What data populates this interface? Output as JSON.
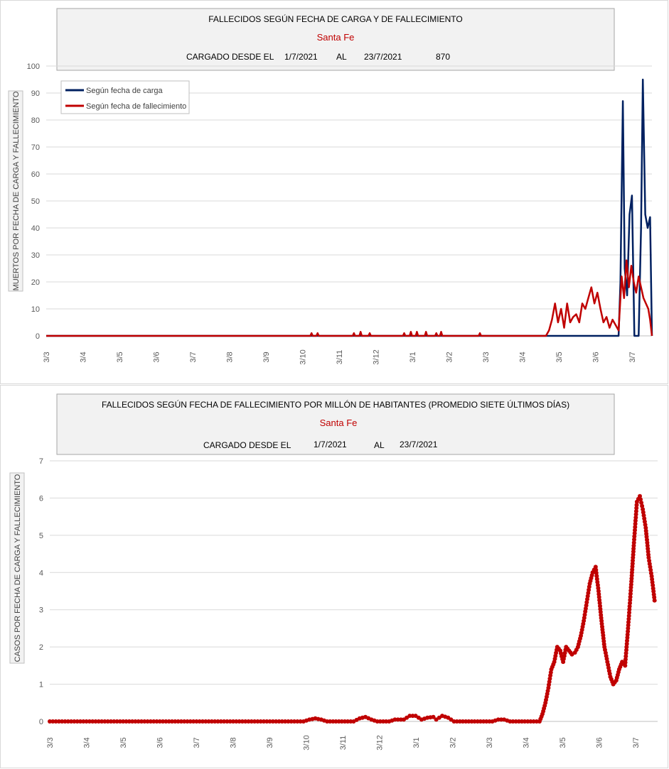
{
  "chart_data": [
    {
      "type": "line",
      "title": "FALLECIDOS SEGÚN FECHA DE CARGA Y DE FALLECIMIENTO",
      "subtitle": "Santa Fe",
      "info": {
        "label": "CARGADO DESDE EL",
        "from": "1/7/2021",
        "to_label": "AL",
        "to": "23/7/2021",
        "total": "870"
      },
      "ylabel": "MUERTOS  POR FECHA DE CARGA  Y FALLECIMIENTO",
      "ylim": [
        0,
        100
      ],
      "yticks": [
        "0",
        "10",
        "20",
        "30",
        "40",
        "50",
        "60",
        "70",
        "80",
        "90",
        "100"
      ],
      "xlim": [
        0,
        100
      ],
      "xticks": [
        "3/3",
        "3/4",
        "3/5",
        "3/6",
        "3/7",
        "3/8",
        "3/9",
        "3/10",
        "3/11",
        "3/12",
        "3/1",
        "3/2",
        "3/3",
        "3/4",
        "3/5",
        "3/6",
        "3/7"
      ],
      "legend_position": "top-left",
      "series": [
        {
          "name": "Según fecha de carga",
          "color": "#002060",
          "points": [
            [
              0,
              0
            ],
            [
              94.5,
              0
            ],
            [
              94.8,
              20
            ],
            [
              95.2,
              87
            ],
            [
              95.5,
              25
            ],
            [
              95.9,
              15
            ],
            [
              96.3,
              45
            ],
            [
              96.7,
              52
            ],
            [
              97.1,
              0
            ],
            [
              97.8,
              0
            ],
            [
              98.2,
              40
            ],
            [
              98.5,
              95
            ],
            [
              98.9,
              45
            ],
            [
              99.3,
              40
            ],
            [
              99.7,
              44
            ],
            [
              100.0,
              0
            ]
          ]
        },
        {
          "name": "Según fecha de fallecimiento",
          "color": "#c00000",
          "points": [
            [
              0,
              0
            ],
            [
              43.6,
              0
            ],
            [
              43.8,
              1
            ],
            [
              44.0,
              0
            ],
            [
              44.6,
              0
            ],
            [
              44.8,
              1
            ],
            [
              45.0,
              0
            ],
            [
              50.6,
              0
            ],
            [
              50.8,
              1
            ],
            [
              51.0,
              0
            ],
            [
              51.7,
              0
            ],
            [
              51.9,
              1.5
            ],
            [
              52.1,
              0
            ],
            [
              53.2,
              0
            ],
            [
              53.4,
              1
            ],
            [
              53.6,
              0
            ],
            [
              58.9,
              0
            ],
            [
              59.1,
              1
            ],
            [
              59.3,
              0
            ],
            [
              60.0,
              0
            ],
            [
              60.2,
              1.5
            ],
            [
              60.4,
              0
            ],
            [
              61.0,
              0
            ],
            [
              61.2,
              1.5
            ],
            [
              61.4,
              0
            ],
            [
              62.5,
              0
            ],
            [
              62.7,
              1.5
            ],
            [
              62.9,
              0
            ],
            [
              64.2,
              0
            ],
            [
              64.4,
              1
            ],
            [
              64.6,
              0
            ],
            [
              65.0,
              0
            ],
            [
              65.2,
              1.5
            ],
            [
              65.4,
              0
            ],
            [
              71.4,
              0
            ],
            [
              71.6,
              1
            ],
            [
              71.8,
              0
            ],
            [
              82.5,
              0
            ],
            [
              83.0,
              2
            ],
            [
              83.5,
              6
            ],
            [
              84.0,
              12
            ],
            [
              84.5,
              5
            ],
            [
              85.0,
              10
            ],
            [
              85.5,
              3
            ],
            [
              86.0,
              12
            ],
            [
              86.5,
              5
            ],
            [
              87.0,
              7
            ],
            [
              87.5,
              8
            ],
            [
              88.0,
              5
            ],
            [
              88.5,
              12
            ],
            [
              89.0,
              10
            ],
            [
              89.5,
              14
            ],
            [
              90.0,
              18
            ],
            [
              90.5,
              12
            ],
            [
              91.0,
              16
            ],
            [
              91.5,
              10
            ],
            [
              92.0,
              5
            ],
            [
              92.5,
              7
            ],
            [
              93.0,
              3
            ],
            [
              93.5,
              6
            ],
            [
              94.0,
              4
            ],
            [
              94.5,
              2
            ],
            [
              95.0,
              22
            ],
            [
              95.4,
              14
            ],
            [
              95.8,
              28
            ],
            [
              96.2,
              18
            ],
            [
              96.6,
              26
            ],
            [
              97.0,
              20
            ],
            [
              97.4,
              16
            ],
            [
              97.8,
              22
            ],
            [
              98.2,
              18
            ],
            [
              98.6,
              14
            ],
            [
              99.0,
              12
            ],
            [
              99.4,
              10
            ],
            [
              99.7,
              6
            ],
            [
              100.0,
              0
            ]
          ]
        }
      ]
    },
    {
      "type": "line",
      "title": "FALLECIDOS SEGÚN FECHA DE FALLECIMIENTO POR MILLÓN DE HABITANTES (PROMEDIO SIETE ÚLTIMOS DÍAS)",
      "subtitle": "Santa Fe",
      "info": {
        "label": "CARGADO DESDE EL",
        "from": "1/7/2021",
        "to_label": "AL",
        "to": "23/7/2021"
      },
      "ylabel": "CASOS  POR FECHA  DE CARGA  Y FALLECIMIENTO",
      "ylim": [
        0,
        7
      ],
      "yticks": [
        "0",
        "1",
        "2",
        "3",
        "4",
        "5",
        "6",
        "7"
      ],
      "xlim": [
        0,
        100
      ],
      "xticks": [
        "3/3",
        "3/4",
        "3/5",
        "3/6",
        "3/7",
        "3/8",
        "3/9",
        "3/10",
        "3/11",
        "3/12",
        "3/1",
        "3/2",
        "3/3",
        "3/4",
        "3/5",
        "3/6",
        "3/7"
      ],
      "series": [
        {
          "name": "",
          "color": "#c00000",
          "marker": "circle",
          "points": [
            [
              0,
              0
            ],
            [
              43.0,
              0
            ],
            [
              44.0,
              0.05
            ],
            [
              45.0,
              0.08
            ],
            [
              46.0,
              0.05
            ],
            [
              47.0,
              0
            ],
            [
              51.5,
              0
            ],
            [
              52.5,
              0.08
            ],
            [
              53.5,
              0.12
            ],
            [
              54.5,
              0.05
            ],
            [
              55.5,
              0
            ],
            [
              57.5,
              0
            ],
            [
              58.5,
              0.05
            ],
            [
              60.0,
              0.05
            ],
            [
              61.0,
              0.15
            ],
            [
              62.0,
              0.15
            ],
            [
              63.0,
              0.05
            ],
            [
              64.0,
              0.1
            ],
            [
              65.0,
              0.12
            ],
            [
              65.5,
              0.05
            ],
            [
              66.5,
              0.15
            ],
            [
              67.5,
              0.1
            ],
            [
              68.5,
              0
            ],
            [
              75.0,
              0
            ],
            [
              76.0,
              0.05
            ],
            [
              77.0,
              0.05
            ],
            [
              78.0,
              0
            ],
            [
              83.0,
              0
            ],
            [
              83.5,
              0.2
            ],
            [
              84.0,
              0.5
            ],
            [
              84.5,
              0.9
            ],
            [
              85.0,
              1.4
            ],
            [
              85.5,
              1.6
            ],
            [
              86.0,
              2.0
            ],
            [
              86.5,
              1.9
            ],
            [
              87.0,
              1.6
            ],
            [
              87.5,
              2.0
            ],
            [
              88.0,
              1.9
            ],
            [
              88.5,
              1.8
            ],
            [
              89.0,
              1.85
            ],
            [
              89.5,
              2.0
            ],
            [
              90.0,
              2.3
            ],
            [
              90.5,
              2.7
            ],
            [
              91.0,
              3.2
            ],
            [
              91.5,
              3.7
            ],
            [
              92.0,
              4.0
            ],
            [
              92.5,
              4.15
            ],
            [
              93.0,
              3.5
            ],
            [
              93.5,
              2.7
            ],
            [
              94.0,
              2.0
            ],
            [
              94.5,
              1.6
            ],
            [
              95.0,
              1.2
            ],
            [
              95.5,
              1.0
            ],
            [
              96.0,
              1.1
            ],
            [
              96.5,
              1.4
            ],
            [
              97.0,
              1.6
            ],
            [
              97.5,
              1.5
            ],
            [
              98.0,
              2.5
            ],
            [
              98.5,
              3.6
            ],
            [
              99.0,
              4.8
            ],
            [
              99.5,
              5.9
            ],
            [
              100.0,
              6.05
            ],
            [
              100.5,
              5.7
            ],
            [
              101.0,
              5.2
            ],
            [
              101.5,
              4.4
            ],
            [
              102.0,
              3.9
            ],
            [
              102.5,
              3.25
            ]
          ]
        }
      ]
    }
  ]
}
